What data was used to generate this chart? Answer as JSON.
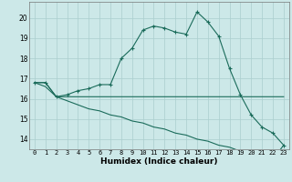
{
  "xlabel": "Humidex (Indice chaleur)",
  "x": [
    0,
    1,
    2,
    3,
    4,
    5,
    6,
    7,
    8,
    9,
    10,
    11,
    12,
    13,
    14,
    15,
    16,
    17,
    18,
    19,
    20,
    21,
    22,
    23
  ],
  "line1": [
    16.8,
    16.8,
    16.1,
    16.2,
    16.4,
    16.5,
    16.7,
    16.7,
    18.0,
    18.5,
    19.4,
    19.6,
    19.5,
    19.3,
    19.2,
    20.3,
    19.8,
    19.1,
    17.5,
    16.2,
    15.2,
    14.6,
    14.3,
    13.7
  ],
  "line2": [
    16.8,
    16.8,
    16.1,
    16.1,
    16.1,
    16.1,
    16.1,
    16.1,
    16.1,
    16.1,
    16.1,
    16.1,
    16.1,
    16.1,
    16.1,
    16.1,
    16.1,
    16.1,
    16.1,
    16.1,
    16.1,
    16.1,
    16.1,
    16.1
  ],
  "line3": [
    16.8,
    16.6,
    16.1,
    15.9,
    15.7,
    15.5,
    15.4,
    15.2,
    15.1,
    14.9,
    14.8,
    14.6,
    14.5,
    14.3,
    14.2,
    14.0,
    13.9,
    13.7,
    13.6,
    13.4,
    13.3,
    13.1,
    13.0,
    13.7
  ],
  "line_color": "#1a6b5a",
  "bg_color": "#cce8e8",
  "grid_color": "#aacece",
  "ylim": [
    13.5,
    20.8
  ],
  "yticks": [
    14,
    15,
    16,
    17,
    18,
    19,
    20
  ],
  "xlim": [
    -0.5,
    23.5
  ],
  "xtick_fontsize": 5.0,
  "ytick_fontsize": 5.5,
  "xlabel_fontsize": 6.5
}
